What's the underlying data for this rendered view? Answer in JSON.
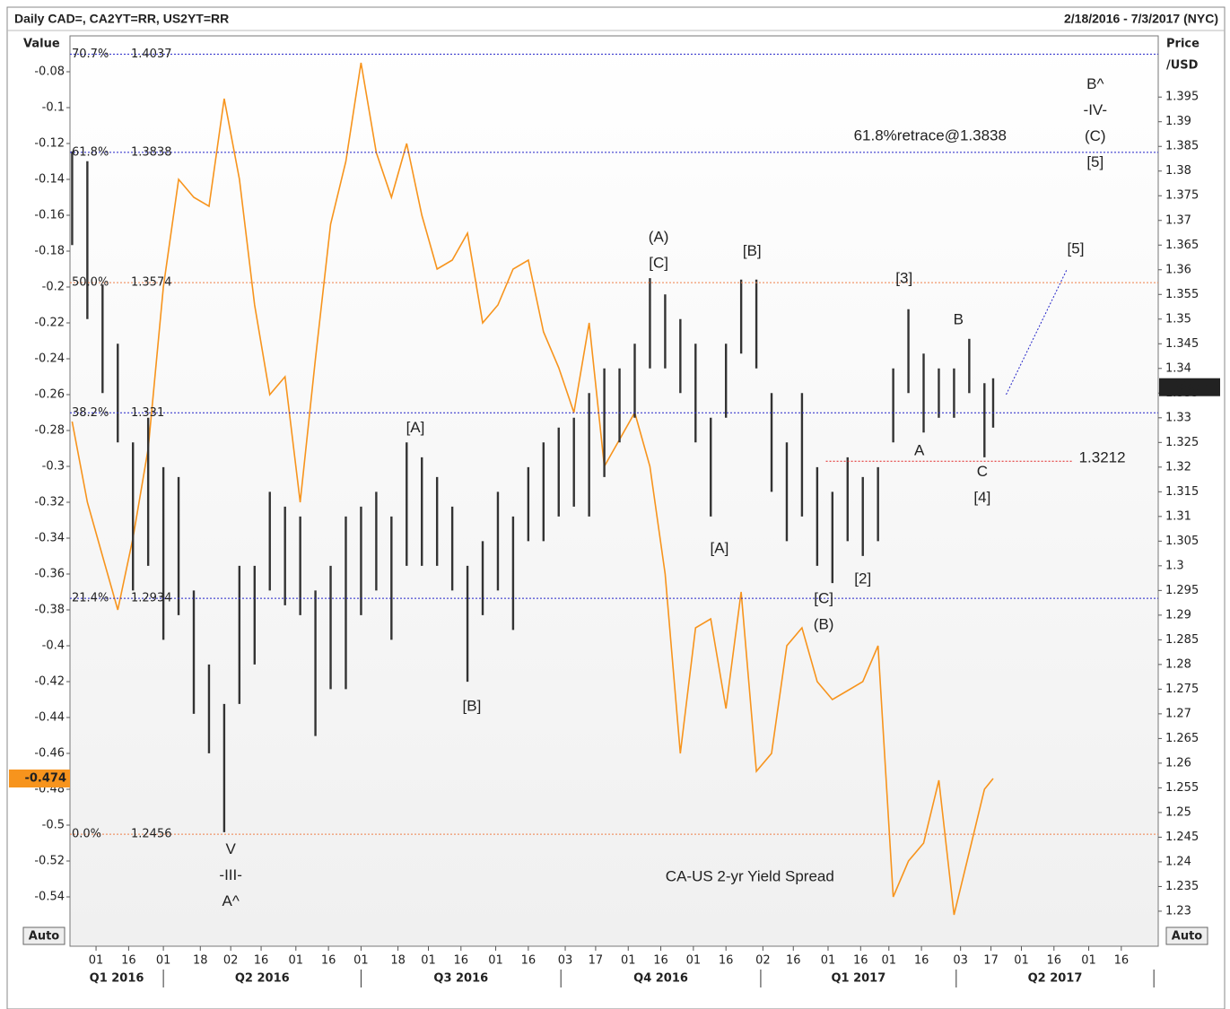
{
  "header": {
    "title": "Daily CAD=, CA2YT=RR, US2YT=RR",
    "range": "2/18/2016 - 7/3/2017 (NYC)"
  },
  "buttons": [
    "Auto",
    "Auto"
  ],
  "chart_data": {
    "type": "line",
    "ylabel": "Value",
    "y2label": [
      "Price",
      "/USD"
    ],
    "xlim": [
      "2016-02-18",
      "2017-07-03"
    ],
    "ylim": [
      -0.5675,
      -0.06
    ],
    "yticks": [
      -0.08,
      -0.1,
      -0.12,
      -0.14,
      -0.16,
      -0.18,
      -0.2,
      -0.22,
      -0.24,
      -0.26,
      -0.28,
      -0.3,
      -0.32,
      -0.34,
      -0.36,
      -0.38,
      -0.4,
      -0.42,
      -0.44,
      -0.46,
      -0.48,
      -0.5,
      -0.52,
      -0.54
    ],
    "y2lim": [
      1.2229,
      1.4074
    ],
    "y2ticks": [
      1.23,
      1.235,
      1.24,
      1.245,
      1.25,
      1.255,
      1.26,
      1.265,
      1.27,
      1.275,
      1.28,
      1.285,
      1.29,
      1.295,
      1.3,
      1.305,
      1.31,
      1.315,
      1.32,
      1.325,
      1.33,
      1.335,
      1.34,
      1.345,
      1.35,
      1.355,
      1.36,
      1.365,
      1.37,
      1.375,
      1.38,
      1.385,
      1.39,
      1.395
    ],
    "xticks": [
      {
        "value": "2016-03-01",
        "label": "01"
      },
      {
        "value": "2016-03-16",
        "label": "16"
      },
      {
        "value": "2016-04-01",
        "label": "01"
      },
      {
        "value": "2016-04-18",
        "label": "18"
      },
      {
        "value": "2016-05-02",
        "label": "02"
      },
      {
        "value": "2016-05-16",
        "label": "16"
      },
      {
        "value": "2016-06-01",
        "label": "01"
      },
      {
        "value": "2016-06-16",
        "label": "16"
      },
      {
        "value": "2016-07-01",
        "label": "01"
      },
      {
        "value": "2016-07-18",
        "label": "18"
      },
      {
        "value": "2016-08-01",
        "label": "01"
      },
      {
        "value": "2016-08-16",
        "label": "16"
      },
      {
        "value": "2016-09-01",
        "label": "01"
      },
      {
        "value": "2016-09-16",
        "label": "16"
      },
      {
        "value": "2016-10-03",
        "label": "03"
      },
      {
        "value": "2016-10-17",
        "label": "17"
      },
      {
        "value": "2016-11-01",
        "label": "01"
      },
      {
        "value": "2016-11-16",
        "label": "16"
      },
      {
        "value": "2016-12-01",
        "label": "01"
      },
      {
        "value": "2016-12-16",
        "label": "16"
      },
      {
        "value": "2017-01-02",
        "label": "02"
      },
      {
        "value": "2017-01-16",
        "label": "16"
      },
      {
        "value": "2017-02-01",
        "label": "01"
      },
      {
        "value": "2017-02-16",
        "label": "16"
      },
      {
        "value": "2017-03-01",
        "label": "01"
      },
      {
        "value": "2017-03-16",
        "label": "16"
      },
      {
        "value": "2017-04-03",
        "label": "03"
      },
      {
        "value": "2017-04-17",
        "label": "17"
      },
      {
        "value": "2017-05-01",
        "label": "01"
      },
      {
        "value": "2017-05-16",
        "label": "16"
      },
      {
        "value": "2017-06-01",
        "label": "01"
      },
      {
        "value": "2017-06-16",
        "label": "16"
      }
    ],
    "quarters": [
      {
        "label": "Q1 2016",
        "start": "2016-01-01",
        "end": "2016-04-01"
      },
      {
        "label": "Q2 2016",
        "start": "2016-04-01",
        "end": "2016-07-01"
      },
      {
        "label": "Q3 2016",
        "start": "2016-07-01",
        "end": "2016-10-01"
      },
      {
        "label": "Q4 2016",
        "start": "2016-10-01",
        "end": "2017-01-01"
      },
      {
        "label": "Q1 2017",
        "start": "2017-01-01",
        "end": "2017-04-01"
      },
      {
        "label": "Q2 2017",
        "start": "2017-04-01",
        "end": "2017-07-01"
      }
    ],
    "x": [
      "2016-02-19",
      "2016-02-26",
      "2016-03-04",
      "2016-03-11",
      "2016-03-18",
      "2016-03-25",
      "2016-04-01",
      "2016-04-08",
      "2016-04-15",
      "2016-04-22",
      "2016-04-29",
      "2016-05-06",
      "2016-05-13",
      "2016-05-20",
      "2016-05-27",
      "2016-06-03",
      "2016-06-10",
      "2016-06-17",
      "2016-06-24",
      "2016-07-01",
      "2016-07-08",
      "2016-07-15",
      "2016-07-22",
      "2016-07-29",
      "2016-08-05",
      "2016-08-12",
      "2016-08-19",
      "2016-08-26",
      "2016-09-02",
      "2016-09-09",
      "2016-09-16",
      "2016-09-23",
      "2016-09-30",
      "2016-10-07",
      "2016-10-14",
      "2016-10-21",
      "2016-10-28",
      "2016-11-04",
      "2016-11-11",
      "2016-11-18",
      "2016-11-25",
      "2016-12-02",
      "2016-12-09",
      "2016-12-16",
      "2016-12-23",
      "2016-12-30",
      "2017-01-06",
      "2017-01-13",
      "2017-01-20",
      "2017-01-27",
      "2017-02-03",
      "2017-02-10",
      "2017-02-17",
      "2017-02-24",
      "2017-03-03",
      "2017-03-10",
      "2017-03-17",
      "2017-03-24",
      "2017-03-31",
      "2017-04-07",
      "2017-04-14",
      "2017-04-18"
    ],
    "series": [
      {
        "color": "#f7941d",
        "values": [
          -0.275,
          -0.32,
          -0.35,
          -0.38,
          -0.34,
          -0.29,
          -0.2,
          -0.14,
          -0.15,
          -0.155,
          -0.095,
          -0.14,
          -0.21,
          -0.26,
          -0.25,
          -0.32,
          -0.24,
          -0.165,
          -0.13,
          -0.075,
          -0.125,
          -0.15,
          -0.12,
          -0.16,
          -0.19,
          -0.185,
          -0.17,
          -0.22,
          -0.21,
          -0.19,
          -0.185,
          -0.225,
          -0.245,
          -0.27,
          -0.22,
          -0.3,
          -0.285,
          -0.27,
          -0.3,
          -0.36,
          -0.46,
          -0.39,
          -0.385,
          -0.435,
          -0.37,
          -0.47,
          -0.46,
          -0.4,
          -0.39,
          -0.42,
          -0.43,
          -0.425,
          -0.42,
          -0.4,
          -0.54,
          -0.52,
          -0.51,
          -0.475,
          -0.55,
          -0.515,
          -0.48,
          -0.474
        ]
      },
      {
        "type": "range",
        "axis": "y2",
        "color": "#333333",
        "low": [
          1.365,
          1.35,
          1.335,
          1.325,
          1.295,
          1.3,
          1.285,
          1.29,
          1.27,
          1.262,
          1.246,
          1.272,
          1.28,
          1.295,
          1.292,
          1.29,
          1.2655,
          1.275,
          1.275,
          1.29,
          1.295,
          1.285,
          1.3,
          1.3,
          1.3,
          1.295,
          1.2765,
          1.29,
          1.295,
          1.287,
          1.305,
          1.305,
          1.31,
          1.312,
          1.31,
          1.318,
          1.325,
          1.33,
          1.34,
          1.34,
          1.335,
          1.325,
          1.31,
          1.33,
          1.343,
          1.34,
          1.315,
          1.305,
          1.31,
          1.3,
          1.2965,
          1.305,
          1.302,
          1.305,
          1.325,
          1.335,
          1.327,
          1.33,
          1.33,
          1.335,
          1.322,
          1.328
        ],
        "high": [
          1.384,
          1.382,
          1.357,
          1.345,
          1.325,
          1.33,
          1.32,
          1.318,
          1.295,
          1.28,
          1.272,
          1.3,
          1.3,
          1.315,
          1.312,
          1.31,
          1.295,
          1.3,
          1.31,
          1.312,
          1.315,
          1.31,
          1.325,
          1.322,
          1.318,
          1.312,
          1.3,
          1.305,
          1.315,
          1.31,
          1.32,
          1.325,
          1.328,
          1.33,
          1.335,
          1.34,
          1.34,
          1.345,
          1.3583,
          1.355,
          1.35,
          1.345,
          1.33,
          1.345,
          1.358,
          1.358,
          1.335,
          1.325,
          1.335,
          1.32,
          1.315,
          1.322,
          1.318,
          1.32,
          1.34,
          1.352,
          1.343,
          1.34,
          1.34,
          1.346,
          1.337,
          1.338
        ]
      }
    ],
    "last_price": 1.3362,
    "fib_levels": [
      {
        "label": "70.7%",
        "value": 1.4037,
        "color": "#2323c8"
      },
      {
        "label": "61.8%",
        "value": 1.3838,
        "color": "#2323c8"
      },
      {
        "label": "50.0%",
        "value": 1.3574,
        "color": "#f0804a"
      },
      {
        "label": "38.2%",
        "value": 1.331,
        "color": "#2323c8"
      },
      {
        "label": "21.4%",
        "value": 1.2934,
        "color": "#2323c8"
      },
      {
        "label": "0.0%",
        "value": 1.2456,
        "color": "#f0804a"
      }
    ],
    "support": {
      "value": 1.3212,
      "from": "2017-01-31",
      "to": "2017-05-25",
      "color": "#e02020",
      "label_color": "#2323c8"
    },
    "projection": {
      "x": [
        "2017-04-24",
        "2017-05-22"
      ],
      "y": [
        1.3347,
        1.3601
      ],
      "color": "#2323c8"
    },
    "annotations": [
      {
        "lines": [
          "V",
          "-III-",
          "A^"
        ],
        "x": "2016-05-02",
        "y": 1.2424,
        "color": "#2323c8"
      },
      {
        "lines": [
          "[A]"
        ],
        "x": "2016-07-26",
        "y": 1.3279,
        "color": "#2323c8"
      },
      {
        "lines": [
          "[B]"
        ],
        "x": "2016-08-21",
        "y": 1.2714,
        "color": "#2323c8"
      },
      {
        "lines": [
          "(A)",
          "[C]"
        ],
        "x": "2016-11-15",
        "y": 1.3665,
        "color": "#2323c8"
      },
      {
        "lines": [
          "[B]"
        ],
        "x": "2016-12-28",
        "y": 1.3637,
        "color": "#2323c8"
      },
      {
        "lines": [
          "[A]"
        ],
        "x": "2016-12-13",
        "y": 1.3034,
        "color": "#2323c8"
      },
      {
        "lines": [
          "[C]",
          "(B)"
        ],
        "x": "2017-01-30",
        "y": 1.2932,
        "color": "#2323c8"
      },
      {
        "lines": [
          "[2]"
        ],
        "x": "2017-02-17",
        "y": 1.2972,
        "color": "#2323c8"
      },
      {
        "lines": [
          "[3]"
        ],
        "x": "2017-03-08",
        "y": 1.3581,
        "color": "#2323c8"
      },
      {
        "lines": [
          "A"
        ],
        "x": "2017-03-15",
        "y": 1.3232,
        "color": "#2323c8"
      },
      {
        "lines": [
          "B"
        ],
        "x": "2017-04-02",
        "y": 1.3498,
        "color": "#2323c8"
      },
      {
        "lines": [
          "C",
          "[4]"
        ],
        "x": "2017-04-13",
        "y": 1.319,
        "color": "#2323c8"
      },
      {
        "lines": [
          "B^",
          "-IV-",
          "(C)",
          "[5]"
        ],
        "x": "2017-06-04",
        "y": 1.3975,
        "color": "#2323c8"
      },
      {
        "lines": [
          "[5]"
        ],
        "x": "2017-05-26",
        "y": 1.3641,
        "color": "#e02020"
      }
    ],
    "labels": [
      {
        "text": "61.8%retrace@1.3838",
        "x": "2017-03-20",
        "y": 1.387,
        "axis": "y2",
        "color": "#2323c8"
      },
      {
        "text": "CA-US 2-yr Yield Spread",
        "x": "2016-12-27",
        "y": -0.529,
        "axis": "y",
        "color": "#f7941d"
      }
    ]
  }
}
